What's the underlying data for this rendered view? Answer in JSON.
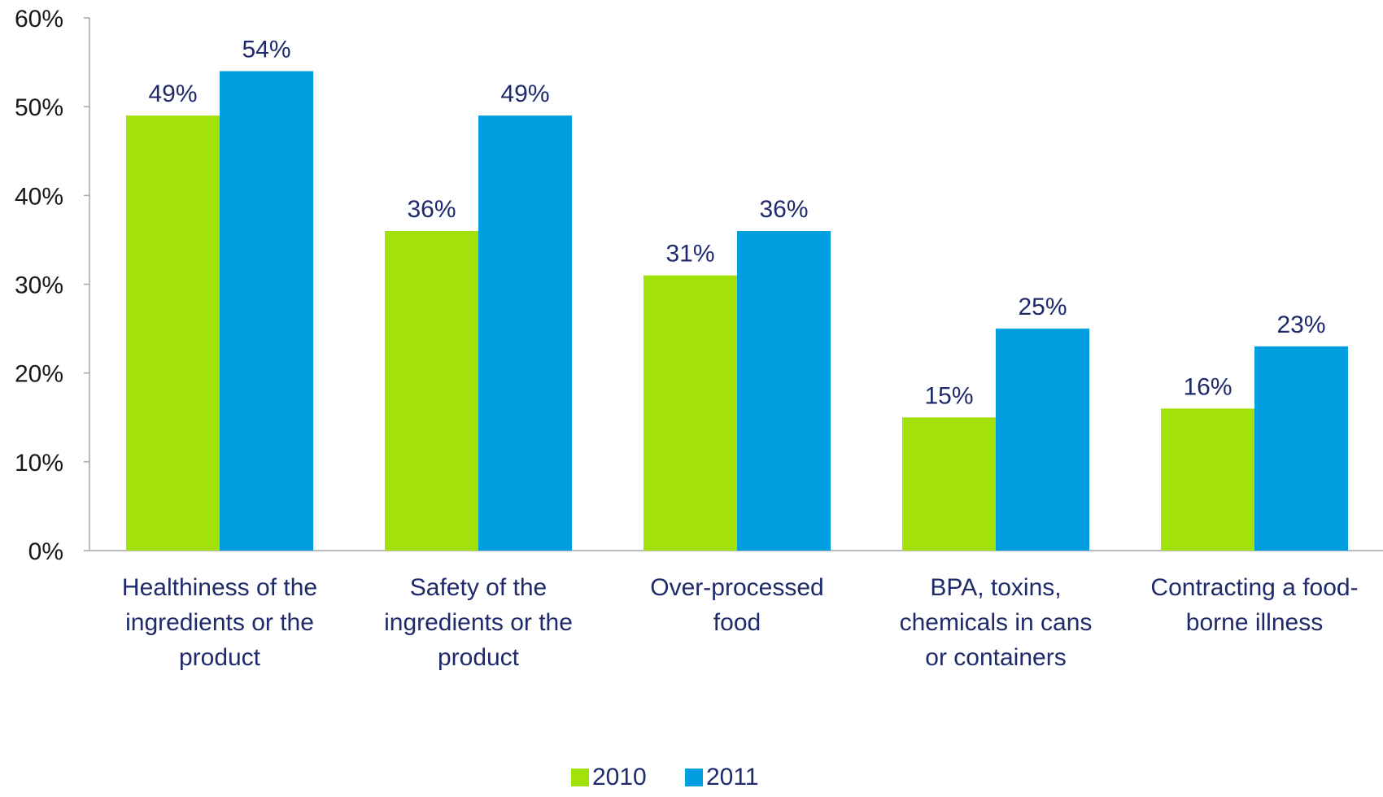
{
  "chart_data": {
    "type": "bar",
    "title": "",
    "xlabel": "",
    "ylabel": "",
    "ylim": [
      0,
      60
    ],
    "y_ticks": [
      0,
      10,
      20,
      30,
      40,
      50,
      60
    ],
    "y_tick_labels": [
      "0%",
      "10%",
      "20%",
      "30%",
      "40%",
      "50%",
      "60%"
    ],
    "grid": false,
    "legend_position": "bottom",
    "categories": [
      [
        "Healthiness of the",
        "ingredients or the",
        "product"
      ],
      [
        "Safety of the",
        "ingredients or the",
        "product"
      ],
      [
        "Over-processed",
        "food"
      ],
      [
        "BPA, toxins,",
        "chemicals in cans",
        "or containers"
      ],
      [
        "Contracting a food-",
        "borne illness"
      ]
    ],
    "series": [
      {
        "name": "2010",
        "color": "#a3e10a",
        "values": [
          49,
          36,
          31,
          15,
          16
        ],
        "labels": [
          "49%",
          "36%",
          "31%",
          "15%",
          "16%"
        ]
      },
      {
        "name": "2011",
        "color": "#009fe0",
        "values": [
          54,
          49,
          36,
          25,
          23
        ],
        "labels": [
          "54%",
          "49%",
          "36%",
          "25%",
          "23%"
        ]
      }
    ]
  }
}
